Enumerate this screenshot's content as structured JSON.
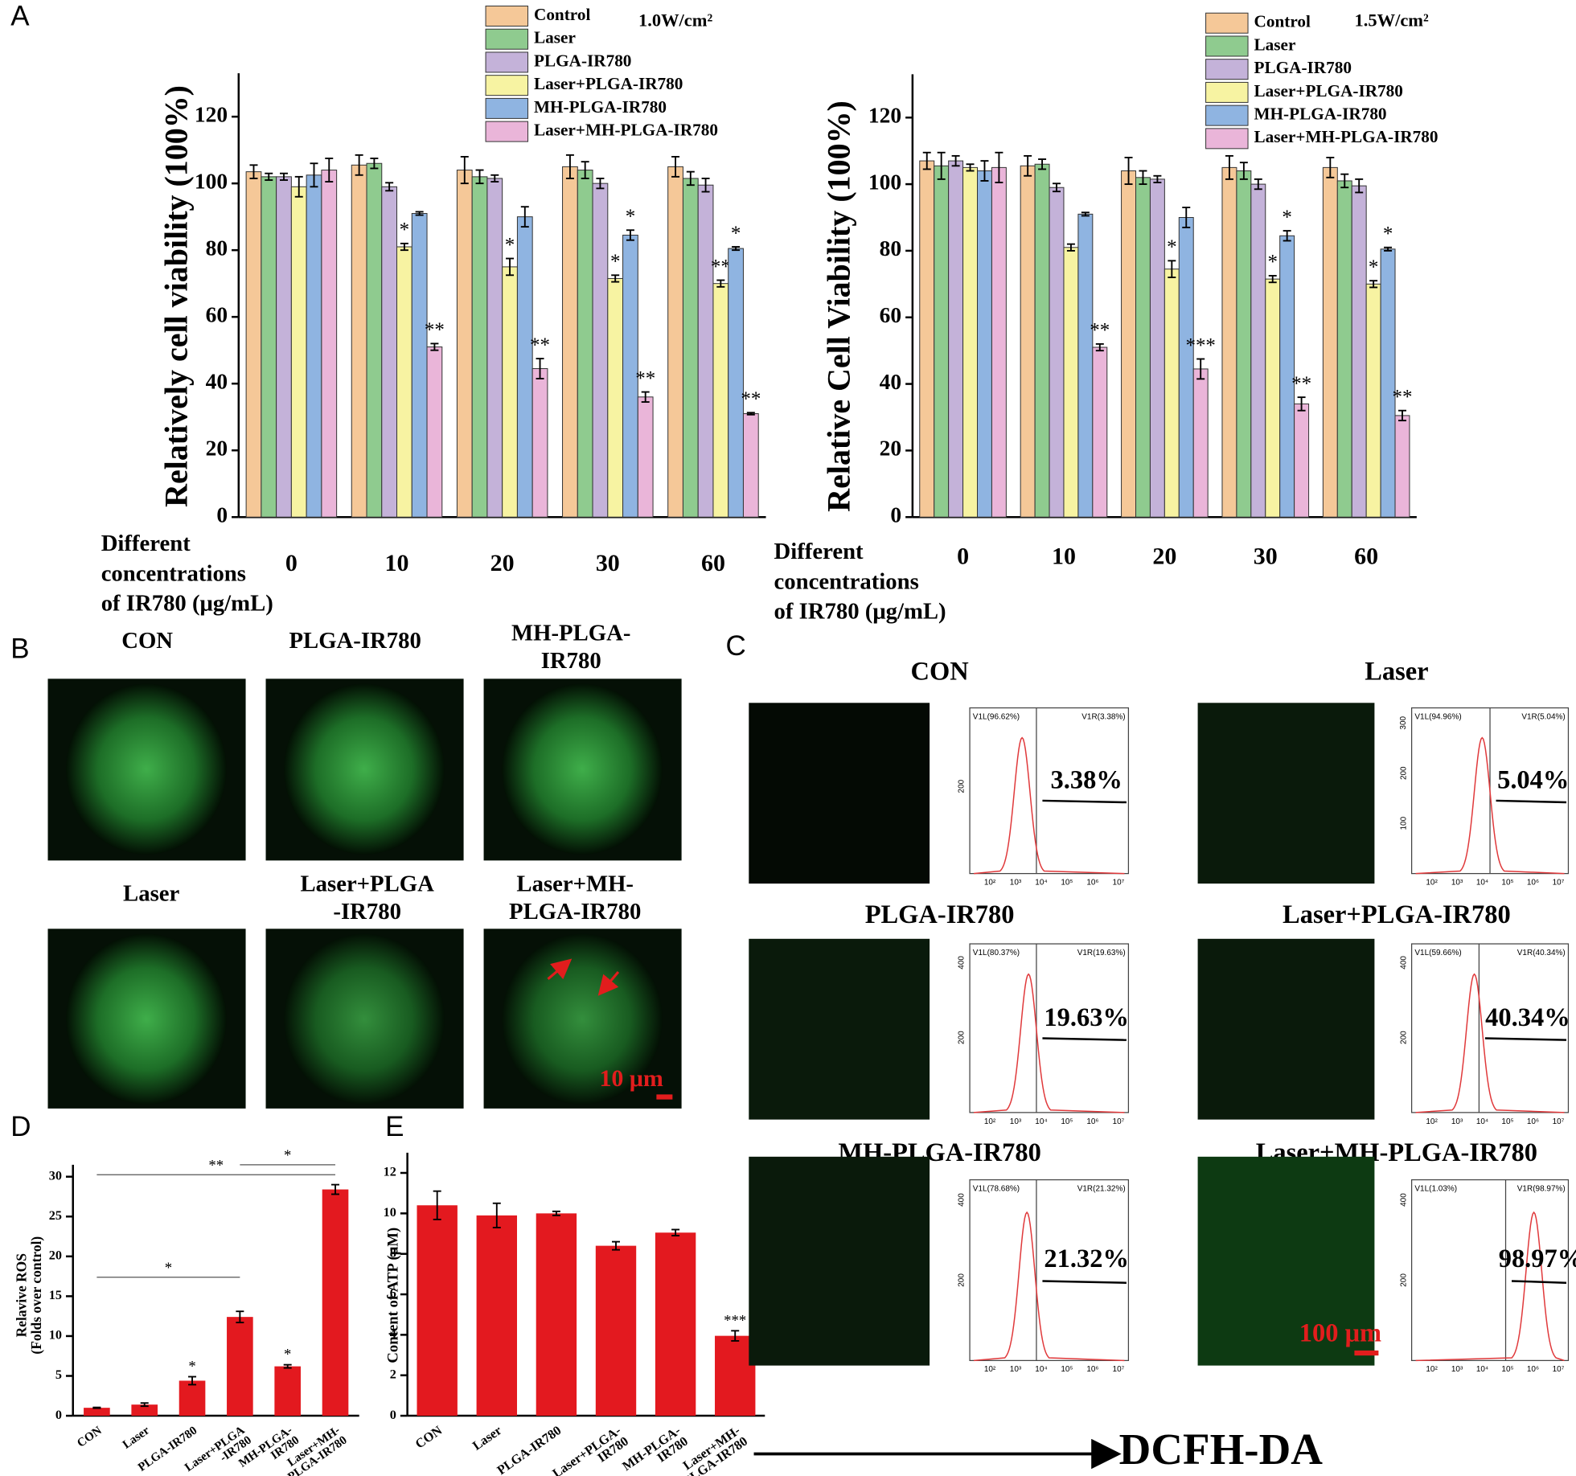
{
  "panel_labels": [
    "A",
    "B",
    "C",
    "D",
    "E"
  ],
  "chart_data": [
    {
      "type": "bar",
      "annotation": "1.0W/cm²",
      "ylabel": "Relatively cell viability (100%)",
      "xlabel": [
        "Different",
        "concentrations",
        "of IR780 (μg/mL)"
      ],
      "categories": [
        "0",
        "10",
        "20",
        "30",
        "60"
      ],
      "ylim": [
        0,
        133
      ],
      "yticks": [
        0,
        20,
        40,
        60,
        80,
        100,
        120
      ],
      "series": [
        {
          "name": "Control",
          "color": "#f5c898",
          "values": [
            103.5,
            105.5,
            104,
            105,
            105
          ],
          "errors": [
            2,
            3,
            4,
            3.5,
            3
          ],
          "annotations": [
            null,
            null,
            null,
            null,
            null
          ]
        },
        {
          "name": "Laser",
          "color": "#8fcb8f",
          "values": [
            102,
            106,
            102,
            104,
            101.5
          ],
          "errors": [
            1,
            1.5,
            2,
            2.5,
            2
          ],
          "annotations": [
            null,
            null,
            null,
            null,
            null
          ]
        },
        {
          "name": "PLGA-IR780",
          "color": "#c4b2d9",
          "values": [
            102,
            99,
            101.5,
            100,
            99.5
          ],
          "errors": [
            1,
            1.2,
            1,
            1.5,
            2
          ],
          "annotations": [
            null,
            null,
            null,
            null,
            null
          ]
        },
        {
          "name": "Laser+PLGA-IR780",
          "color": "#f7f3a2",
          "values": [
            99,
            81,
            75,
            71.5,
            70
          ],
          "errors": [
            3,
            1,
            2.5,
            1,
            1
          ],
          "annotations": [
            null,
            "*",
            "*",
            "*",
            "**"
          ]
        },
        {
          "name": "MH-PLGA-IR780",
          "color": "#8fb4e1",
          "values": [
            102.5,
            91,
            90,
            84.5,
            80.5
          ],
          "errors": [
            3.5,
            0.5,
            3,
            1.5,
            0.5
          ],
          "annotations": [
            null,
            null,
            null,
            "*",
            "*"
          ]
        },
        {
          "name": "Laser+MH-PLGA-IR780",
          "color": "#eab5d9",
          "values": [
            104,
            51,
            44.5,
            36,
            31
          ],
          "errors": [
            3.5,
            1,
            3,
            1.5,
            0.3
          ],
          "annotations": [
            null,
            "**",
            "**",
            "**",
            "**"
          ]
        }
      ]
    },
    {
      "type": "bar",
      "annotation": "1.5W/cm²",
      "ylabel": "Relative Cell Viability (100%)",
      "xlabel": [
        "Different",
        "concentrations",
        "of IR780 (μg/mL)"
      ],
      "categories": [
        "0",
        "10",
        "20",
        "30",
        "60"
      ],
      "ylim": [
        0,
        133
      ],
      "yticks": [
        0,
        20,
        40,
        60,
        80,
        100,
        120
      ],
      "series": [
        {
          "name": "Control",
          "color": "#f5c898",
          "values": [
            107,
            105.5,
            104,
            105,
            105
          ],
          "errors": [
            2.5,
            3,
            4,
            3.5,
            3
          ],
          "annotations": [
            null,
            null,
            null,
            null,
            null
          ]
        },
        {
          "name": "Laser",
          "color": "#8fcb8f",
          "values": [
            105.5,
            106,
            102,
            104,
            101
          ],
          "errors": [
            4,
            1.5,
            2,
            2.5,
            2
          ],
          "annotations": [
            null,
            null,
            null,
            null,
            null
          ]
        },
        {
          "name": "PLGA-IR780",
          "color": "#c4b2d9",
          "values": [
            107,
            99,
            101.5,
            100,
            99.5
          ],
          "errors": [
            1.5,
            1.2,
            1,
            1.5,
            2
          ],
          "annotations": [
            null,
            null,
            null,
            null,
            null
          ]
        },
        {
          "name": "Laser+PLGA-IR780",
          "color": "#f7f3a2",
          "values": [
            105,
            81,
            74.5,
            71.5,
            70
          ],
          "errors": [
            1,
            1,
            2.5,
            1,
            1
          ],
          "annotations": [
            null,
            null,
            "*",
            "*",
            "*"
          ]
        },
        {
          "name": "MH-PLGA-IR780",
          "color": "#8fb4e1",
          "values": [
            104,
            91,
            90,
            84.5,
            80.5
          ],
          "errors": [
            3,
            0.5,
            3,
            1.5,
            0.5
          ],
          "annotations": [
            null,
            null,
            null,
            "*",
            "*"
          ]
        },
        {
          "name": "Laser+MH-PLGA-IR780",
          "color": "#eab5d9",
          "values": [
            105,
            51,
            44.5,
            34,
            30.5
          ],
          "errors": [
            4.5,
            1,
            3,
            2,
            1.5
          ],
          "annotations": [
            null,
            "**",
            "***",
            "**",
            "**"
          ]
        }
      ]
    },
    {
      "type": "bar",
      "ylabel": [
        "Relavive ROS",
        "(Folds over control)"
      ],
      "color": "#e3191f",
      "categories": [
        "CON",
        "Laser",
        "PLGA-IR780",
        "Laser+PLGA\n-IR780",
        "MH-PLGA-\nIR780",
        "Laser+MH-\nPLGA-IR780"
      ],
      "values": [
        1,
        1.4,
        4.4,
        12.4,
        6.2,
        28.4
      ],
      "errors": [
        0.05,
        0.2,
        0.5,
        0.7,
        0.2,
        0.6
      ],
      "annotations": [
        null,
        null,
        "*",
        null,
        "*",
        null
      ],
      "brackets": [
        {
          "text": "**",
          "from": "CON",
          "to": "Laser+MH-\nPLGA-IR780"
        },
        {
          "text": "*",
          "from": "Laser+PLGA\n-IR780",
          "to": "Laser+MH-\nPLGA-IR780"
        },
        {
          "text": "*",
          "from": "CON",
          "to": "Laser+PLGA\n-IR780"
        }
      ],
      "ylim": [
        0,
        31.5
      ],
      "yticks": [
        0,
        5,
        10,
        15,
        20,
        25,
        30
      ]
    },
    {
      "type": "bar",
      "ylabel": [
        "Content of ATP (μM)"
      ],
      "color": "#e3191f",
      "categories": [
        "CON",
        "Laser",
        "PLGA-IR780",
        "Laser+PLGA-\nIR780",
        "MH-PLGA-\nIR780",
        "Laser+MH-\nPLGA-IR780"
      ],
      "values": [
        10.4,
        9.9,
        10,
        8.4,
        9.05,
        3.95
      ],
      "errors": [
        0.7,
        0.6,
        0.1,
        0.2,
        0.15,
        0.25
      ],
      "annotations": [
        null,
        null,
        null,
        null,
        null,
        "***"
      ],
      "ylim": [
        0,
        13
      ],
      "yticks": [
        0,
        2,
        4,
        6,
        8,
        10,
        12
      ]
    }
  ],
  "panel_b": {
    "labels": [
      "CON",
      "PLGA-IR780",
      "MH-PLGA-\nIR780",
      "Laser",
      "Laser+PLGA\n-IR780",
      "Laser+MH-\nPLGA-IR780"
    ],
    "scale_bar": "10 μm"
  },
  "panel_c": {
    "panels": [
      {
        "label": "CON",
        "gate_left": "V1L(96.62%)",
        "gate_right": "V1R(3.38%)",
        "percent": "3.38%",
        "yticks": [
          200
        ]
      },
      {
        "label": "Laser",
        "gate_left": "V1L(94.96%)",
        "gate_right": "V1R(5.04%)",
        "percent": "5.04%",
        "yticks": [
          100,
          200,
          300
        ]
      },
      {
        "label": "PLGA-IR780",
        "gate_left": "V1L(80.37%)",
        "gate_right": "V1R(19.63%)",
        "percent": "19.63%",
        "yticks": [
          200,
          400
        ]
      },
      {
        "label": "Laser+PLGA-IR780",
        "gate_left": "V1L(59.66%)",
        "gate_right": "V1R(40.34%)",
        "percent": "40.34%",
        "yticks": [
          200,
          400
        ]
      },
      {
        "label": "MH-PLGA-IR780",
        "gate_left": "V1L(78.68%)",
        "gate_right": "V1R(21.32%)",
        "percent": "21.32%",
        "yticks": [
          200,
          400
        ]
      },
      {
        "label": "Laser+MH-PLGA-IR780",
        "gate_left": "V1L(1.03%)",
        "gate_right": "V1R(98.97%)",
        "percent": "98.97%",
        "yticks": [
          200,
          400
        ]
      }
    ],
    "xticks": [
      "10²",
      "10³",
      "10⁴",
      "10⁵",
      "10⁶",
      "10⁷"
    ],
    "scale_bar": "100 μm",
    "axis_label": "DCFH-DA"
  }
}
